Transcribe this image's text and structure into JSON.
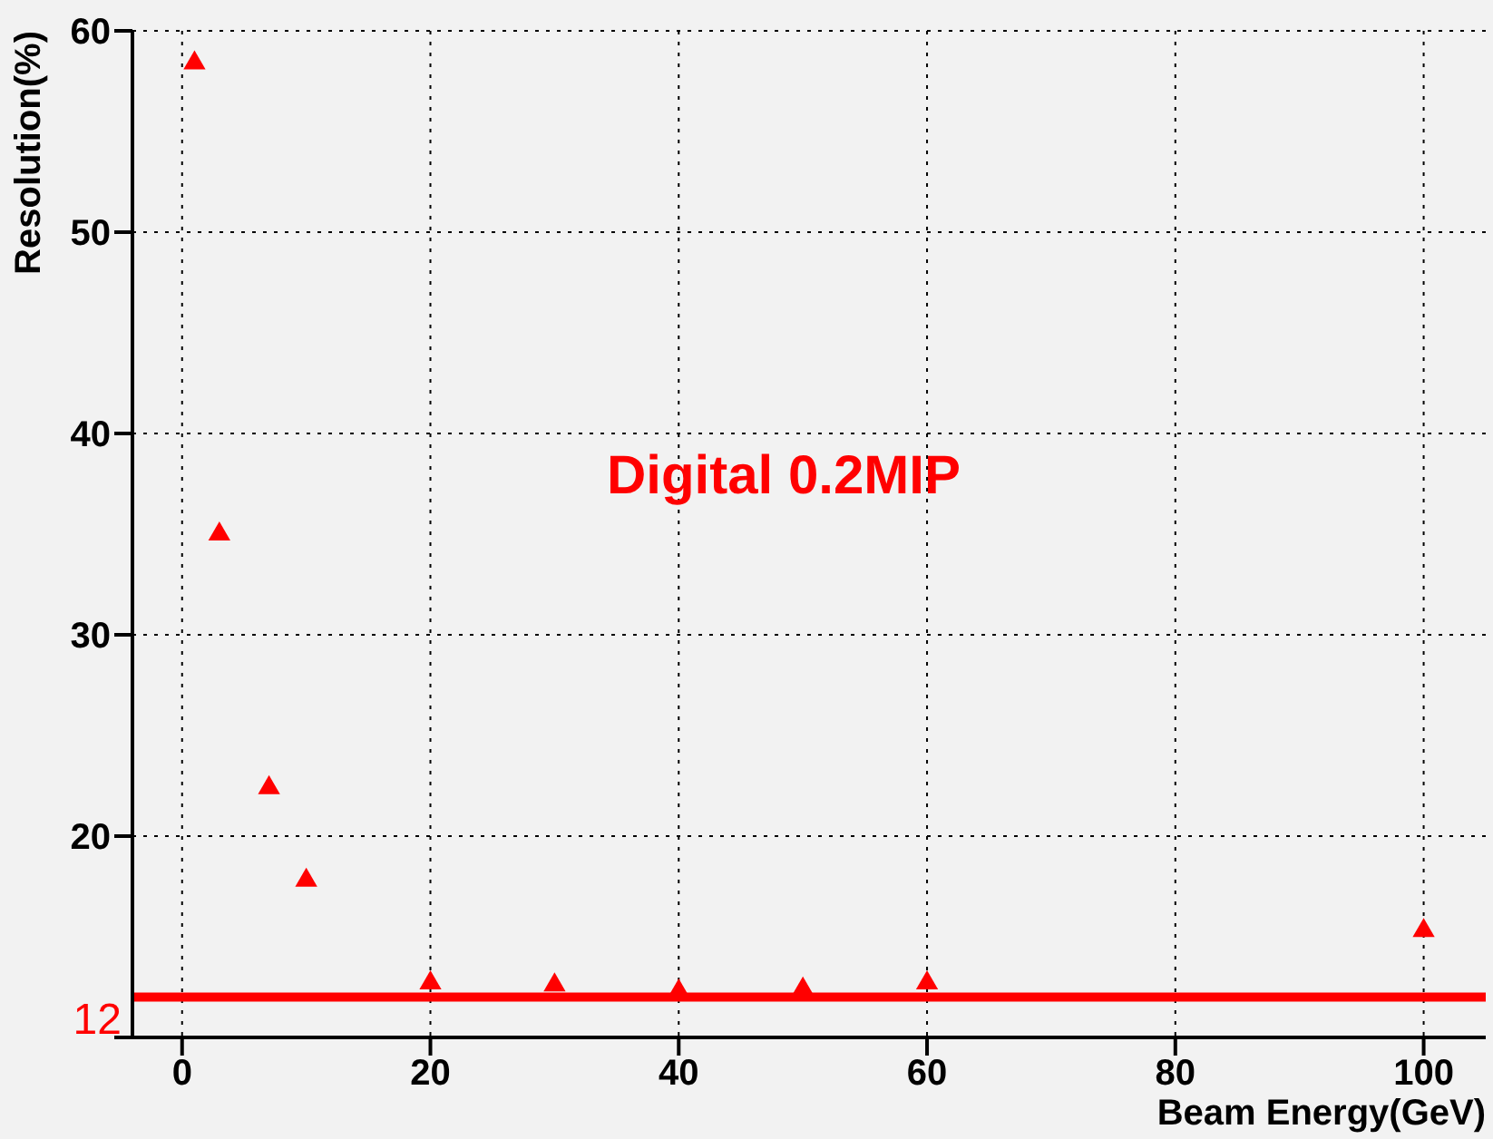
{
  "chart_data": {
    "type": "scatter",
    "xlabel": "Beam Energy(GeV)",
    "ylabel": "Resolution(%)",
    "x": [
      1,
      3,
      7,
      10,
      20,
      30,
      40,
      50,
      60,
      100
    ],
    "series": [
      {
        "color": "#ff0000",
        "values": [
          58.4,
          35.0,
          22.4,
          17.8,
          12.7,
          12.6,
          12.3,
          12.4,
          12.7,
          15.3
        ]
      }
    ],
    "xlim": [
      -4,
      105
    ],
    "xticks": [
      0,
      20,
      40,
      60,
      80,
      100
    ],
    "ylim": [
      10,
      60
    ],
    "yticks": [
      {
        "value": 10,
        "label": null
      },
      20,
      30,
      40,
      50,
      60
    ],
    "grid": true,
    "marker": "triangle",
    "ref_lines": [
      {
        "axis": "y",
        "value": 12,
        "label": "12",
        "color": "#ff0000"
      }
    ],
    "annotations": [
      "Digital 0.2MIP"
    ]
  }
}
